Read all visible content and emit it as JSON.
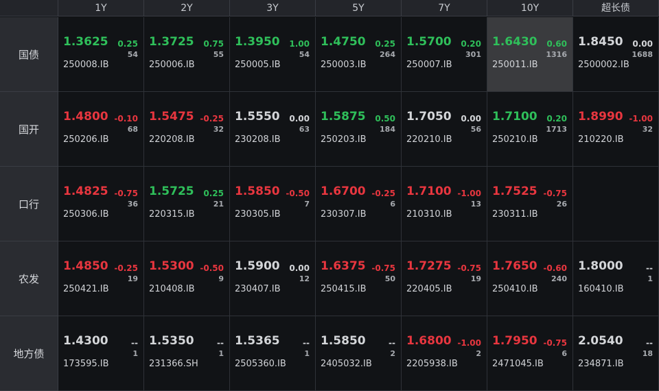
{
  "headers": [
    "",
    "1Y",
    "2Y",
    "3Y",
    "5Y",
    "7Y",
    "10Y",
    "超长债"
  ],
  "colors": {
    "up": "#2fbf5a",
    "down": "#e8363f",
    "flat": "#d4d6d9"
  },
  "rows": [
    {
      "label": "国债",
      "cells": [
        {
          "price": "1.3625",
          "change": "0.25",
          "volume": "54",
          "code": "250008.IB",
          "dir": "up"
        },
        {
          "price": "1.3725",
          "change": "0.75",
          "volume": "55",
          "code": "250006.IB",
          "dir": "up"
        },
        {
          "price": "1.3950",
          "change": "1.00",
          "volume": "54",
          "code": "250005.IB",
          "dir": "up"
        },
        {
          "price": "1.4750",
          "change": "0.25",
          "volume": "264",
          "code": "250003.IB",
          "dir": "up"
        },
        {
          "price": "1.5700",
          "change": "0.20",
          "volume": "301",
          "code": "250007.IB",
          "dir": "up"
        },
        {
          "price": "1.6430",
          "change": "0.60",
          "volume": "1316",
          "code": "250011.IB",
          "dir": "up",
          "highlight": true
        },
        {
          "price": "1.8450",
          "change": "0.00",
          "volume": "1688",
          "code": "2500002.IB",
          "dir": "flat"
        }
      ]
    },
    {
      "label": "国开",
      "cells": [
        {
          "price": "1.4800",
          "change": "-0.10",
          "volume": "68",
          "code": "250206.IB",
          "dir": "down"
        },
        {
          "price": "1.5475",
          "change": "-0.25",
          "volume": "32",
          "code": "220208.IB",
          "dir": "down"
        },
        {
          "price": "1.5550",
          "change": "0.00",
          "volume": "63",
          "code": "230208.IB",
          "dir": "flat"
        },
        {
          "price": "1.5875",
          "change": "0.50",
          "volume": "184",
          "code": "250203.IB",
          "dir": "up"
        },
        {
          "price": "1.7050",
          "change": "0.00",
          "volume": "56",
          "code": "220210.IB",
          "dir": "flat"
        },
        {
          "price": "1.7100",
          "change": "0.20",
          "volume": "1713",
          "code": "250210.IB",
          "dir": "up"
        },
        {
          "price": "1.8990",
          "change": "-1.00",
          "volume": "32",
          "code": "210220.IB",
          "dir": "down"
        }
      ]
    },
    {
      "label": "口行",
      "cells": [
        {
          "price": "1.4825",
          "change": "-0.75",
          "volume": "36",
          "code": "250306.IB",
          "dir": "down"
        },
        {
          "price": "1.5725",
          "change": "0.25",
          "volume": "21",
          "code": "220315.IB",
          "dir": "up"
        },
        {
          "price": "1.5850",
          "change": "-0.50",
          "volume": "7",
          "code": "230305.IB",
          "dir": "down"
        },
        {
          "price": "1.6700",
          "change": "-0.25",
          "volume": "6",
          "code": "230307.IB",
          "dir": "down"
        },
        {
          "price": "1.7100",
          "change": "-1.00",
          "volume": "13",
          "code": "210310.IB",
          "dir": "down"
        },
        {
          "price": "1.7525",
          "change": "-0.75",
          "volume": "26",
          "code": "230311.IB",
          "dir": "down"
        },
        {
          "price": "",
          "change": "",
          "volume": "",
          "code": "",
          "dir": "flat"
        }
      ]
    },
    {
      "label": "农发",
      "cells": [
        {
          "price": "1.4850",
          "change": "-0.25",
          "volume": "19",
          "code": "250421.IB",
          "dir": "down"
        },
        {
          "price": "1.5300",
          "change": "-0.50",
          "volume": "9",
          "code": "210408.IB",
          "dir": "down"
        },
        {
          "price": "1.5900",
          "change": "0.00",
          "volume": "12",
          "code": "230407.IB",
          "dir": "flat"
        },
        {
          "price": "1.6375",
          "change": "-0.75",
          "volume": "50",
          "code": "250415.IB",
          "dir": "down"
        },
        {
          "price": "1.7275",
          "change": "-0.75",
          "volume": "19",
          "code": "220405.IB",
          "dir": "down"
        },
        {
          "price": "1.7650",
          "change": "-0.60",
          "volume": "240",
          "code": "250410.IB",
          "dir": "down"
        },
        {
          "price": "1.8000",
          "change": "--",
          "volume": "1",
          "code": "160410.IB",
          "dir": "flat"
        }
      ]
    },
    {
      "label": "地方债",
      "cells": [
        {
          "price": "1.4300",
          "change": "--",
          "volume": "1",
          "code": "173595.IB",
          "dir": "flat"
        },
        {
          "price": "1.5350",
          "change": "--",
          "volume": "1",
          "code": "231366.SH",
          "dir": "flat"
        },
        {
          "price": "1.5365",
          "change": "--",
          "volume": "1",
          "code": "2505360.IB",
          "dir": "flat"
        },
        {
          "price": "1.5850",
          "change": "--",
          "volume": "2",
          "code": "2405032.IB",
          "dir": "flat"
        },
        {
          "price": "1.6800",
          "change": "-1.00",
          "volume": "2",
          "code": "2205938.IB",
          "dir": "down"
        },
        {
          "price": "1.7950",
          "change": "-0.75",
          "volume": "6",
          "code": "2471045.IB",
          "dir": "down"
        },
        {
          "price": "2.0540",
          "change": "--",
          "volume": "18",
          "code": "234871.IB",
          "dir": "flat"
        }
      ]
    }
  ]
}
